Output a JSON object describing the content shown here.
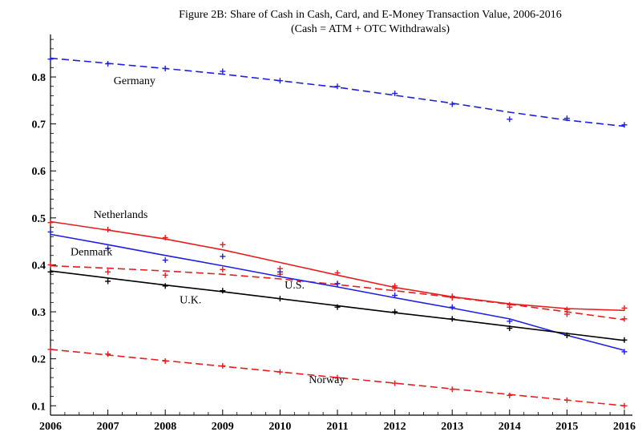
{
  "chart_data": {
    "type": "line",
    "title": "Figure 2B: Share of Cash in Cash, Card, and E-Money Transaction Value, 2006-2016",
    "subtitle": "(Cash = ATM + OTC Withdrawals)",
    "xlabel": "",
    "ylabel": "",
    "xlim": [
      2006,
      2016
    ],
    "ylim": [
      0.08,
      0.87
    ],
    "x_ticks": [
      "2006",
      "2007",
      "2008",
      "2009",
      "2010",
      "2011",
      "2012",
      "2013",
      "2014",
      "2015",
      "2016"
    ],
    "y_ticks": [
      "0.1",
      "0.2",
      "0.3",
      "0.4",
      "0.5",
      "0.6",
      "0.7",
      "0.8"
    ],
    "grid": false,
    "legend": "none (inline series labels)",
    "series": [
      {
        "name": "Germany",
        "color": "#1f1fe6",
        "dash": true,
        "points": [
          [
            2006,
            0.838
          ],
          [
            2007,
            0.828
          ],
          [
            2008,
            0.818
          ],
          [
            2009,
            0.812
          ],
          [
            2010,
            0.792
          ],
          [
            2011,
            0.78
          ],
          [
            2012,
            0.765
          ],
          [
            2013,
            0.742
          ],
          [
            2014,
            0.71
          ],
          [
            2015,
            0.712
          ],
          [
            2016,
            0.698
          ]
        ],
        "fit": [
          [
            2006,
            0.84
          ],
          [
            2007,
            0.829
          ],
          [
            2008,
            0.818
          ],
          [
            2009,
            0.806
          ],
          [
            2010,
            0.792
          ],
          [
            2011,
            0.778
          ],
          [
            2012,
            0.761
          ],
          [
            2013,
            0.744
          ],
          [
            2014,
            0.725
          ],
          [
            2015,
            0.708
          ],
          [
            2016,
            0.695
          ]
        ]
      },
      {
        "name": "Netherlands",
        "color": "#e61e1e",
        "dash": false,
        "points": [
          [
            2006,
            0.49
          ],
          [
            2007,
            0.475
          ],
          [
            2008,
            0.458
          ],
          [
            2009,
            0.443
          ],
          [
            2010,
            0.392
          ],
          [
            2011,
            0.383
          ],
          [
            2012,
            0.355
          ],
          [
            2013,
            0.333
          ],
          [
            2014,
            0.315
          ],
          [
            2015,
            0.305
          ],
          [
            2016,
            0.308
          ]
        ],
        "fit": [
          [
            2006,
            0.492
          ],
          [
            2007,
            0.474
          ],
          [
            2008,
            0.455
          ],
          [
            2009,
            0.432
          ],
          [
            2010,
            0.405
          ],
          [
            2011,
            0.378
          ],
          [
            2012,
            0.352
          ],
          [
            2013,
            0.332
          ],
          [
            2014,
            0.317
          ],
          [
            2015,
            0.307
          ],
          [
            2016,
            0.303
          ]
        ]
      },
      {
        "name": "Denmark",
        "color": "#e61e1e",
        "dash": true,
        "points": [
          [
            2006,
            0.4
          ],
          [
            2007,
            0.385
          ],
          [
            2008,
            0.378
          ],
          [
            2009,
            0.39
          ],
          [
            2010,
            0.38
          ],
          [
            2011,
            0.36
          ],
          [
            2012,
            0.35
          ],
          [
            2013,
            0.33
          ],
          [
            2014,
            0.31
          ],
          [
            2015,
            0.295
          ],
          [
            2016,
            0.285
          ]
        ],
        "fit": [
          [
            2006,
            0.398
          ],
          [
            2007,
            0.393
          ],
          [
            2008,
            0.387
          ],
          [
            2009,
            0.38
          ],
          [
            2010,
            0.37
          ],
          [
            2011,
            0.358
          ],
          [
            2012,
            0.345
          ],
          [
            2013,
            0.331
          ],
          [
            2014,
            0.316
          ],
          [
            2015,
            0.3
          ],
          [
            2016,
            0.283
          ]
        ]
      },
      {
        "name": "U.S.",
        "color": "#1f1fe6",
        "dash": false,
        "points": [
          [
            2006,
            0.47
          ],
          [
            2007,
            0.435
          ],
          [
            2008,
            0.41
          ],
          [
            2009,
            0.418
          ],
          [
            2010,
            0.385
          ],
          [
            2011,
            0.36
          ],
          [
            2012,
            0.335
          ],
          [
            2013,
            0.31
          ],
          [
            2014,
            0.28
          ],
          [
            2015,
            0.25
          ],
          [
            2016,
            0.215
          ]
        ],
        "fit": [
          [
            2006,
            0.465
          ],
          [
            2007,
            0.443
          ],
          [
            2008,
            0.42
          ],
          [
            2009,
            0.398
          ],
          [
            2010,
            0.375
          ],
          [
            2011,
            0.353
          ],
          [
            2012,
            0.33
          ],
          [
            2013,
            0.308
          ],
          [
            2014,
            0.285
          ],
          [
            2015,
            0.25
          ],
          [
            2016,
            0.218
          ]
        ]
      },
      {
        "name": "U.K.",
        "color": "#000000",
        "dash": false,
        "points": [
          [
            2006,
            0.385
          ],
          [
            2007,
            0.365
          ],
          [
            2008,
            0.355
          ],
          [
            2009,
            0.345
          ],
          [
            2010,
            0.328
          ],
          [
            2011,
            0.31
          ],
          [
            2012,
            0.3
          ],
          [
            2013,
            0.285
          ],
          [
            2014,
            0.265
          ],
          [
            2015,
            0.25
          ],
          [
            2016,
            0.24
          ]
        ],
        "fit": [
          [
            2006,
            0.387
          ],
          [
            2007,
            0.372
          ],
          [
            2008,
            0.357
          ],
          [
            2009,
            0.343
          ],
          [
            2010,
            0.328
          ],
          [
            2011,
            0.313
          ],
          [
            2012,
            0.298
          ],
          [
            2013,
            0.284
          ],
          [
            2014,
            0.269
          ],
          [
            2015,
            0.254
          ],
          [
            2016,
            0.239
          ]
        ]
      },
      {
        "name": "Norway",
        "color": "#e61e1e",
        "dash": true,
        "points": [
          [
            2006,
            0.22
          ],
          [
            2007,
            0.21
          ],
          [
            2008,
            0.195
          ],
          [
            2009,
            0.185
          ],
          [
            2010,
            0.172
          ],
          [
            2011,
            0.16
          ],
          [
            2012,
            0.148
          ],
          [
            2013,
            0.135
          ],
          [
            2014,
            0.122
          ],
          [
            2015,
            0.112
          ],
          [
            2016,
            0.1
          ]
        ],
        "fit": [
          [
            2006,
            0.22
          ],
          [
            2007,
            0.208
          ],
          [
            2008,
            0.196
          ],
          [
            2009,
            0.184
          ],
          [
            2010,
            0.172
          ],
          [
            2011,
            0.16
          ],
          [
            2012,
            0.148
          ],
          [
            2013,
            0.136
          ],
          [
            2014,
            0.124
          ],
          [
            2015,
            0.112
          ],
          [
            2016,
            0.1
          ]
        ]
      }
    ],
    "annotations": [
      {
        "text": "Germany",
        "x": 2007.1,
        "y": 0.785
      },
      {
        "text": "Netherlands",
        "x": 2006.75,
        "y": 0.5
      },
      {
        "text": "Denmark",
        "x": 2006.35,
        "y": 0.42
      },
      {
        "text": "U.S.",
        "x": 2010.08,
        "y": 0.35
      },
      {
        "text": "U.K.",
        "x": 2008.25,
        "y": 0.318
      },
      {
        "text": "Norway",
        "x": 2010.5,
        "y": 0.148
      }
    ]
  }
}
